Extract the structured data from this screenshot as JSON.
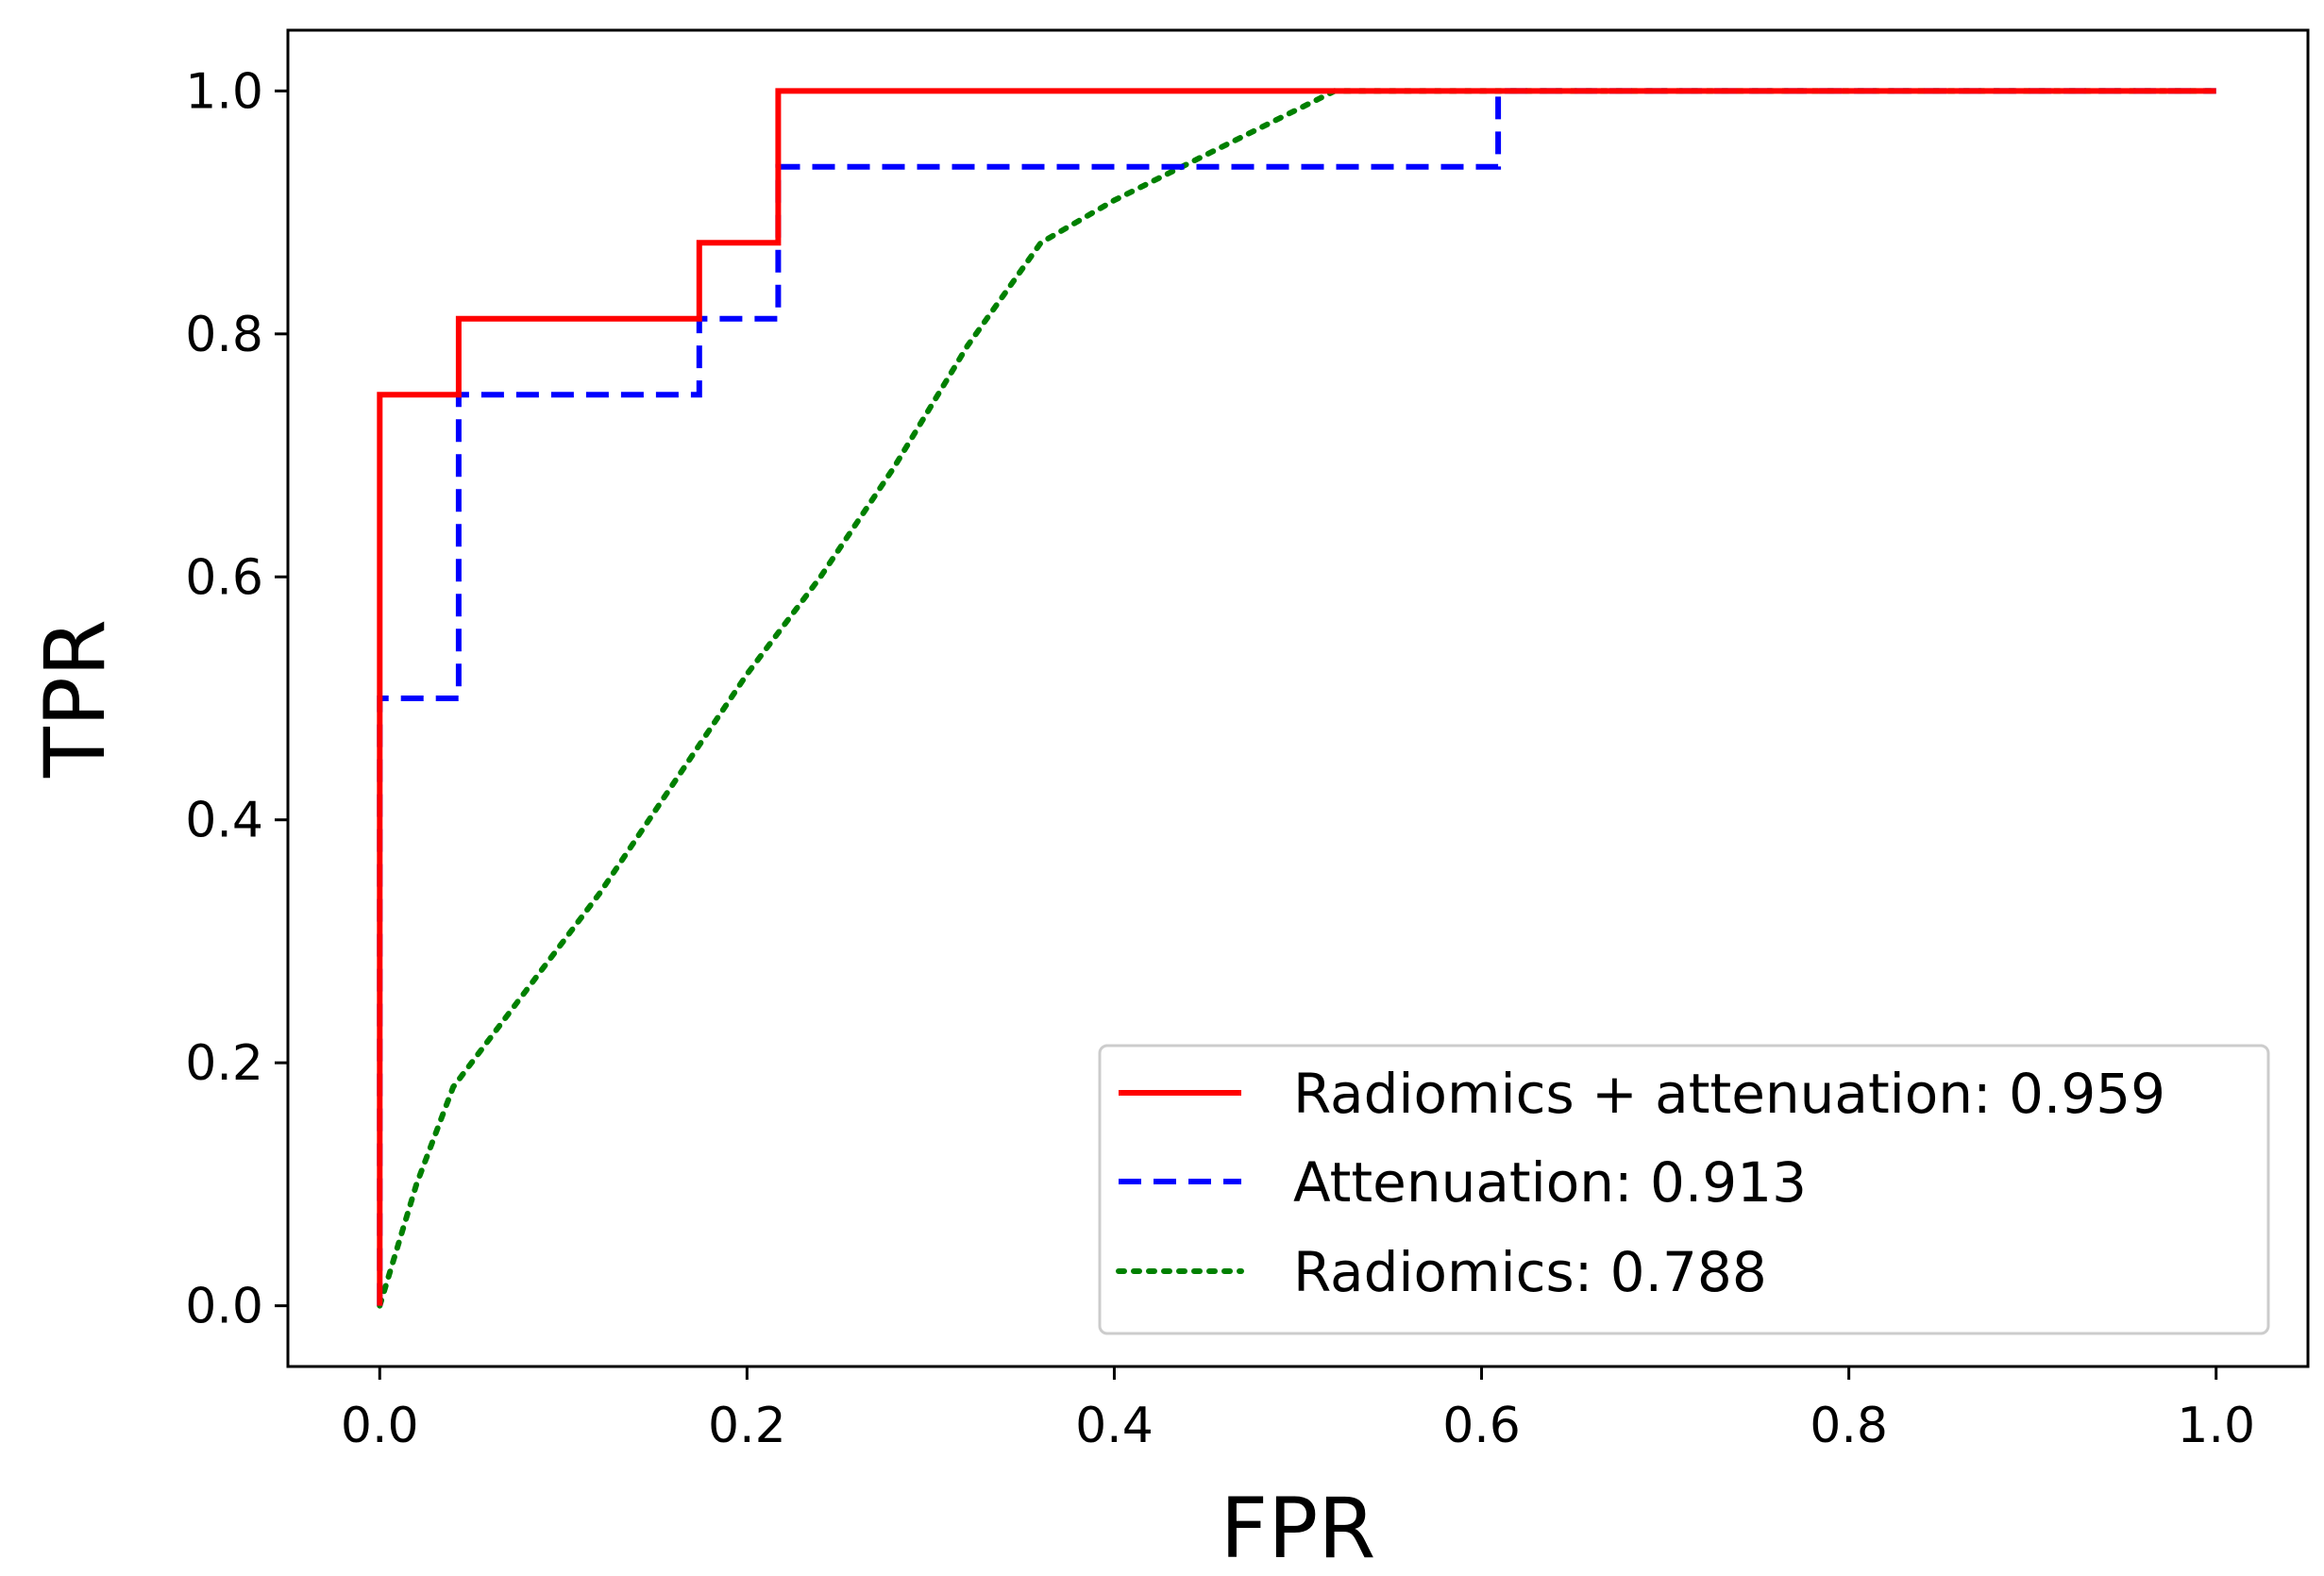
{
  "chart_data": {
    "type": "line",
    "title": "",
    "xlabel": "FPR",
    "ylabel": "TPR",
    "xlim": [
      -0.05,
      1.05
    ],
    "ylim": [
      -0.05,
      1.05
    ],
    "xticks": [
      "0.0",
      "0.2",
      "0.4",
      "0.6",
      "0.8",
      "1.0"
    ],
    "yticks": [
      "0.0",
      "0.2",
      "0.4",
      "0.6",
      "0.8",
      "1.0"
    ],
    "grid": false,
    "legend_position": "lower-right",
    "series": [
      {
        "name": "Radiomics + attenuation: 0.959",
        "color": "#ff0000",
        "style": "solid",
        "x": [
          0.0,
          0.0,
          0.043,
          0.043,
          0.174,
          0.174,
          0.217,
          0.217,
          1.0
        ],
        "y": [
          0.0,
          0.75,
          0.75,
          0.8125,
          0.8125,
          0.875,
          0.875,
          1.0,
          1.0
        ]
      },
      {
        "name": "Attenuation: 0.913",
        "color": "#0000ff",
        "style": "dashed",
        "x": [
          0.0,
          0.0,
          0.043,
          0.043,
          0.174,
          0.174,
          0.217,
          0.217,
          0.609,
          0.609,
          1.0
        ],
        "y": [
          0.0,
          0.5,
          0.5,
          0.75,
          0.75,
          0.8125,
          0.8125,
          0.9375,
          0.9375,
          1.0,
          1.0
        ]
      },
      {
        "name": "Radiomics: 0.788",
        "color": "#008000",
        "style": "dotted",
        "x": [
          0.0,
          0.02,
          0.04,
          0.08,
          0.12,
          0.16,
          0.2,
          0.24,
          0.28,
          0.32,
          0.36,
          0.4,
          0.44,
          0.48,
          0.52,
          0.56,
          1.0
        ],
        "y": [
          0.0,
          0.1,
          0.18,
          0.26,
          0.34,
          0.43,
          0.52,
          0.6,
          0.69,
          0.79,
          0.875,
          0.91,
          0.94,
          0.97,
          1.0,
          1.0,
          1.0
        ]
      }
    ]
  }
}
